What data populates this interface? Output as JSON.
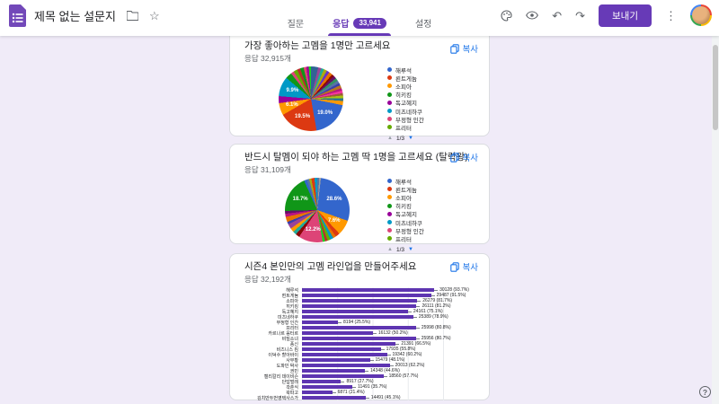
{
  "header": {
    "title": "제목 없는 설문지",
    "send_label": "보내기",
    "tabs": {
      "questions": "질문",
      "responses": "응답",
      "responses_count": "33,941",
      "settings": "설정"
    }
  },
  "colors": {
    "accent_purple": "#673ab7",
    "link_blue": "#1a73e8",
    "bar_purple": "#5e35b1",
    "page_bg": "#f0ebf8"
  },
  "legend": {
    "items": [
      {
        "label": "해루석",
        "color": "#3366cc"
      },
      {
        "label": "뢴트게늄",
        "color": "#dc3912"
      },
      {
        "label": "소피아",
        "color": "#ff9900"
      },
      {
        "label": "히키킹",
        "color": "#109618"
      },
      {
        "label": "독고혜지",
        "color": "#990099"
      },
      {
        "label": "미츠네하쿠",
        "color": "#0099c6"
      },
      {
        "label": "부정형 인간",
        "color": "#dd4477"
      },
      {
        "label": "프리터",
        "color": "#66aa00"
      }
    ],
    "pager": {
      "prev": "▲",
      "label": "1/3",
      "next": "▼"
    }
  },
  "questions": [
    {
      "title": "가장 좋아하는 고멤을 1명만 고르세요",
      "responses": "응답 32,915개",
      "copy_label": "복사",
      "chart_type": "pie",
      "slices": [
        [
          "#316395",
          3.6
        ],
        [
          "#994499",
          1.6
        ],
        [
          "#22aa99",
          1.4
        ],
        [
          "#aaaa11",
          1.6
        ],
        [
          "#6633cc",
          1.4
        ],
        [
          "#e67300",
          1.8
        ],
        [
          "#8b0707",
          1.2
        ],
        [
          "#651067",
          1.4
        ],
        [
          "#329262",
          1.5
        ],
        [
          "#5574a6",
          1.4
        ],
        [
          "#3b3eac",
          1.2
        ],
        [
          "#b77322",
          1.6
        ],
        [
          "#b91383",
          1.2
        ],
        [
          "#f4359e",
          1.3
        ],
        [
          "#9c5935",
          1.2
        ],
        [
          "#a9c413",
          1.3
        ],
        [
          "#2a778d",
          1.4
        ],
        [
          "#ff9900",
          2.1
        ],
        [
          "#3366cc",
          19.0,
          "19.0%"
        ],
        [
          "#dc3912",
          19.5,
          "19.5%"
        ],
        [
          "#ff9900",
          6.1,
          "6.1%"
        ],
        [
          "#990099",
          3.5
        ],
        [
          "#0099c6",
          9.9,
          "9.9%"
        ],
        [
          "#109618",
          3.2
        ],
        [
          "#dd4477",
          1.6
        ],
        [
          "#66aa00",
          1.9
        ],
        [
          "#b82e2e",
          1.6
        ],
        [
          "#109618",
          1.8
        ],
        [
          "#dd4477",
          1.4
        ],
        [
          "#990099",
          1.2
        ],
        [
          "#16d620",
          1.1
        ]
      ]
    },
    {
      "title": "반드시 탈멤이 되야 하는 고멤 딱 1명을 고르세요 (탈락왕)",
      "responses": "응답 31,109개",
      "copy_label": "복사",
      "chart_type": "pie",
      "slices": [
        [
          "#5574a6",
          1.0
        ],
        [
          "#9e9e9e",
          0.8
        ],
        [
          "#3366cc",
          28.6,
          "28.6%"
        ],
        [
          "#ff9900",
          7.6,
          "7.6%"
        ],
        [
          "#dc3912",
          2.2
        ],
        [
          "#e67300",
          1.5
        ],
        [
          "#0099c6",
          1.6
        ],
        [
          "#66aa00",
          1.5
        ],
        [
          "#b82e2e",
          1.3
        ],
        [
          "#16d620",
          1.2
        ],
        [
          "#dd4477",
          12.2,
          "12.2%"
        ],
        [
          "#8b0707",
          2.0
        ],
        [
          "#22aa99",
          1.8
        ],
        [
          "#ff9900",
          2.0
        ],
        [
          "#994499",
          2.4
        ],
        [
          "#3b3eac",
          1.3
        ],
        [
          "#e67300",
          2.6
        ],
        [
          "#b91383",
          1.6
        ],
        [
          "#651067",
          1.4
        ],
        [
          "#109618",
          18.7,
          "18.7%"
        ],
        [
          "#3366cc",
          1.4
        ],
        [
          "#5574a6",
          1.2
        ],
        [
          "#aaaa11",
          1.1
        ],
        [
          "#dc3912",
          1.6
        ],
        [
          "#0099c6",
          1.4
        ]
      ]
    },
    {
      "title": "시즌4 본인만의 고멤 라인업을 만들어주세요",
      "responses": "응답 32,192개",
      "copy_label": "복사",
      "chart_type": "bar",
      "axis_max_pct": 100,
      "bars": [
        {
          "label": "해루석",
          "value": 30128,
          "pct": 93.7,
          "text": "30128 (93.7%)"
        },
        {
          "label": "뢴트게늄",
          "value": 29487,
          "pct": 91.5,
          "text": "29487 (91.5%)"
        },
        {
          "label": "소피아",
          "value": 26279,
          "pct": 81.7,
          "text": "26279 (81.7%)"
        },
        {
          "label": "히키킹",
          "value": 26111,
          "pct": 81.2,
          "text": "26111 (81.2%)"
        },
        {
          "label": "독고혜지",
          "value": 24161,
          "pct": 75.1,
          "text": "24161 (75.1%)"
        },
        {
          "label": "미츠네하쿠",
          "value": 25389,
          "pct": 78.9,
          "text": "25389 (78.9%)"
        },
        {
          "label": "부정형 인간",
          "value": 8194,
          "pct": 25.5,
          "text": "8194 (25.5%)"
        },
        {
          "label": "프리터",
          "value": 25998,
          "pct": 80.8,
          "text": "25998 (80.8%)"
        },
        {
          "label": "카르나르 융터르",
          "value": 16132,
          "pct": 50.2,
          "text": "16132 (50.2%)"
        },
        {
          "label": "비밀소녀",
          "value": 25956,
          "pct": 80.7,
          "text": "25956 (80.7%)"
        },
        {
          "label": "풍신",
          "value": 21391,
          "pct": 66.5,
          "text": "21391 (66.5%)"
        },
        {
          "label": "비즈니스 킴",
          "value": 17935,
          "pct": 55.8,
          "text": "17935 (55.8%)"
        },
        {
          "label": "이덕수 할아바이",
          "value": 19342,
          "pct": 60.2,
          "text": "19342 (60.2%)"
        },
        {
          "label": "사무황",
          "value": 15479,
          "pct": 48.1,
          "text": "15479 (48.1%)"
        },
        {
          "label": "도파민 박사",
          "value": 20013,
          "pct": 62.2,
          "text": "20013 (62.2%)"
        },
        {
          "label": "권민",
          "value": 14348,
          "pct": 44.6,
          "text": "14348 (44.6%)"
        },
        {
          "label": "캘리칼리 데이비슨",
          "value": 18560,
          "pct": 57.7,
          "text": "18560 (57.7%)"
        },
        {
          "label": "단답벌레",
          "value": 8917,
          "pct": 27.7,
          "text": "8917 (27.7%)"
        },
        {
          "label": "곽춘식",
          "value": 11491,
          "pct": 35.7,
          "text": "11491 (35.7%)"
        },
        {
          "label": "왁파고",
          "value": 6871,
          "pct": 21.4,
          "text": "6871 (21.4%)"
        },
        {
          "label": "김치만두번영택사스가",
          "value": 14491,
          "pct": 45.1,
          "text": "14491 (45.1%)"
        }
      ]
    }
  ],
  "help_label": "?"
}
